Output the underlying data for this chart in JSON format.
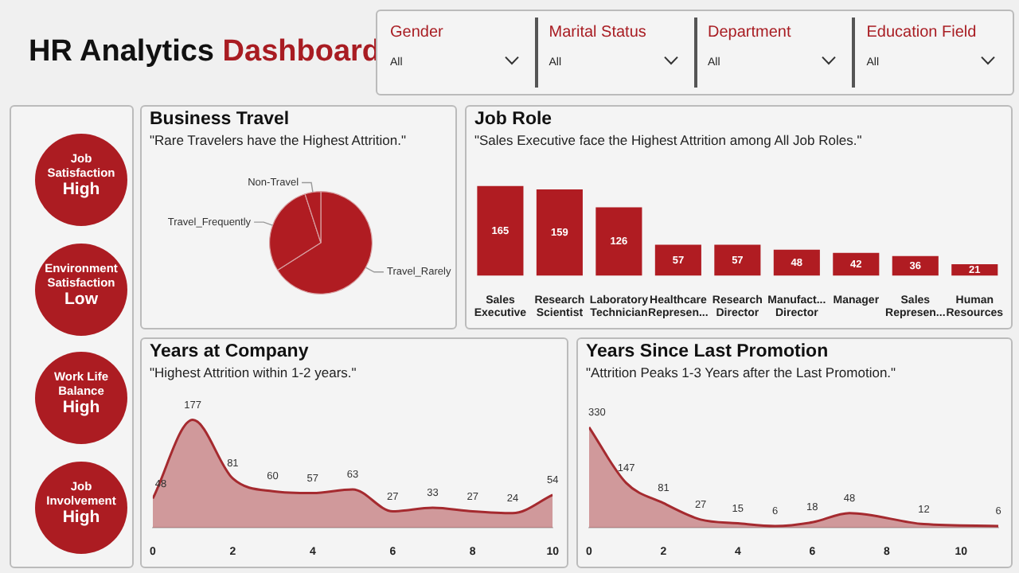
{
  "chart_data": [
    {
      "type": "other",
      "title": "HR Analytics Dashboard",
      "annotations": [
        "Gender",
        "All",
        "Marital Status",
        "All",
        "Department",
        "All",
        "Education Field",
        "All"
      ]
    },
    {
      "type": "other",
      "annotations": [
        "Job Satisfaction",
        "High",
        "Environment Satisfaction",
        "Low",
        "Work Life Balance",
        "High",
        "Job Involvement",
        "High"
      ]
    },
    {
      "type": "pie",
      "title": "Business Travel",
      "subtitle": "\"Rare Travelers have the Highest Attrition.\"",
      "categories": [
        "Travel_Rarely",
        "Travel_Frequently",
        "Non-Travel"
      ],
      "values": [
        66,
        29,
        5
      ],
      "colors": [
        "#b01c22",
        "#b01c22",
        "#b01c22"
      ],
      "legend": false
    },
    {
      "type": "bar",
      "title": "Job Role",
      "subtitle": "\"Sales Executive face the Highest Attrition among All Job Roles.\"",
      "categories": [
        "Sales Executive",
        "Research Scientist",
        "Laboratory Technician",
        "Healthcare Represen...",
        "Research Director",
        "Manufact... Director",
        "Manager",
        "Sales Represen...",
        "Human Resources"
      ],
      "values": [
        165,
        159,
        126,
        57,
        57,
        48,
        42,
        36,
        21
      ],
      "color": "#b01c22",
      "data_labels": true,
      "grid": false,
      "legend": false
    },
    {
      "type": "area",
      "title": "Years at Company",
      "subtitle": "\"Highest Attrition within 1-2 years.\"",
      "x": [
        0,
        1,
        2,
        3,
        4,
        5,
        6,
        7,
        8,
        9,
        10
      ],
      "values": [
        48,
        177,
        81,
        60,
        57,
        63,
        27,
        33,
        27,
        24,
        54
      ],
      "color": "#a52a2f",
      "xlim": [
        0,
        10
      ],
      "xticks": [
        0,
        2,
        4,
        6,
        8,
        10
      ],
      "data_labels": true,
      "grid": false,
      "legend": false
    },
    {
      "type": "area",
      "title": "Years Since Last Promotion",
      "subtitle": "\"Attrition Peaks 1-3 Years after the Last Promotion.\"",
      "x": [
        0,
        1,
        2,
        3,
        4,
        5,
        6,
        7,
        9,
        11
      ],
      "values": [
        330,
        147,
        81,
        27,
        15,
        6,
        18,
        48,
        12,
        6
      ],
      "color": "#a52a2f",
      "xlim": [
        0,
        11
      ],
      "xticks": [
        0,
        2,
        4,
        6,
        8,
        10
      ],
      "data_labels": true,
      "grid": false,
      "legend": false
    }
  ]
}
